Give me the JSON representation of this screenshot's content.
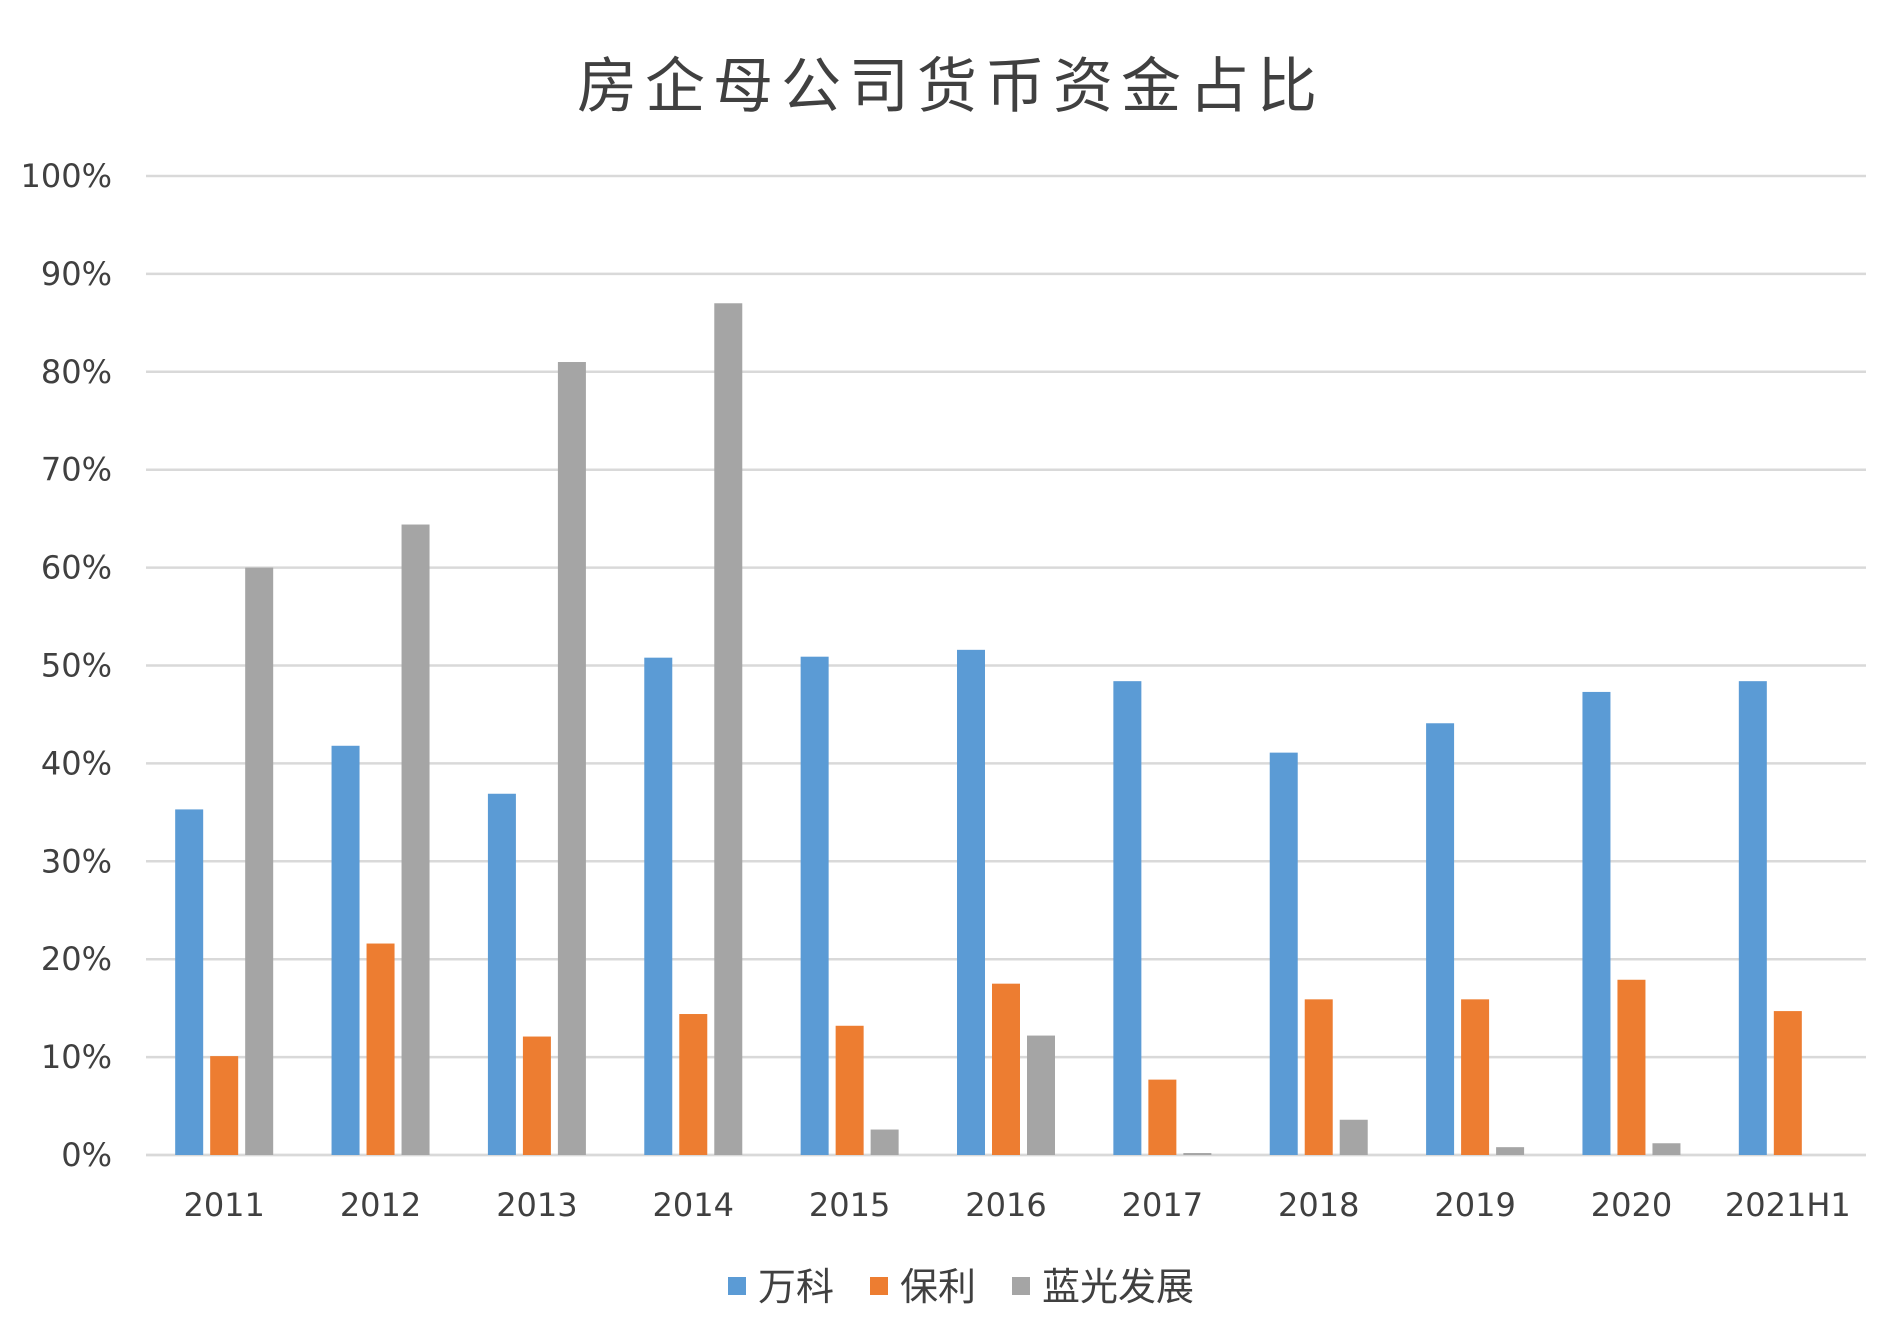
{
  "chart_data": {
    "type": "bar",
    "title": "房企母公司货币资金占比",
    "xlabel": "",
    "ylabel": "",
    "ylim": [
      0,
      1
    ],
    "yticks": [
      "0%",
      "10%",
      "20%",
      "30%",
      "40%",
      "50%",
      "60%",
      "70%",
      "80%",
      "90%",
      "100%"
    ],
    "grid": true,
    "legend_position": "bottom",
    "categories": [
      "2011",
      "2012",
      "2013",
      "2014",
      "2015",
      "2016",
      "2017",
      "2018",
      "2019",
      "2020",
      "2021H1"
    ],
    "series": [
      {
        "name": "万科",
        "color": "#5B9BD5",
        "values": [
          0.353,
          0.418,
          0.369,
          0.508,
          0.509,
          0.516,
          0.484,
          0.411,
          0.441,
          0.473,
          0.484
        ]
      },
      {
        "name": "保利",
        "color": "#ED7D31",
        "values": [
          0.101,
          0.216,
          0.121,
          0.144,
          0.132,
          0.175,
          0.077,
          0.159,
          0.159,
          0.179,
          0.147
        ]
      },
      {
        "name": "蓝光发展",
        "color": "#A5A5A5",
        "values": [
          0.6,
          0.644,
          0.81,
          0.87,
          0.026,
          0.122,
          0.002,
          0.036,
          0.008,
          0.012,
          0
        ]
      }
    ]
  }
}
